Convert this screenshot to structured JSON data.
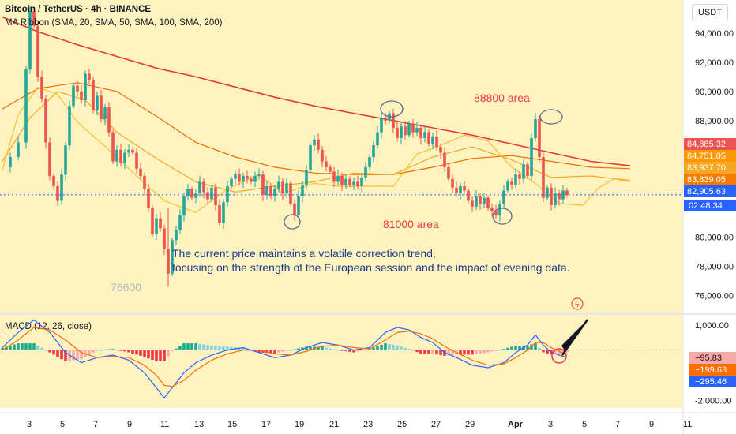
{
  "header": {
    "title": "Bitcoin / TetherUS · 4h · BINANCE",
    "ma_ribbon": "MA Ribbon (SMA, 20, SMA, 50, SMA, 100, SMA, 200)",
    "currency_button": "USDT"
  },
  "annotations": {
    "area_high": "88800 area",
    "area_low": "81000 area",
    "low_label": "76600",
    "note_line1": "The current price maintains a volatile correction trend,",
    "note_line2": "focusing on the strength of the European session and the impact of evening data."
  },
  "colors": {
    "up": "#26a69a",
    "down": "#ef5350",
    "hist_up": "#7fd3dd",
    "hist_down": "#f7a9a7",
    "macd_line": "#2962ff",
    "signal_line": "#ff6d00",
    "background_band": "#fdf3c0",
    "annotation_red": "#f23645"
  },
  "chart_data": [
    {
      "type": "candlestick",
      "title": "Bitcoin / TetherUS · 4h · BINANCE",
      "indicator": "MA Ribbon (SMA, 20, SMA, 50, SMA, 100, SMA, 200)",
      "x_tick_labels": [
        "3",
        "5",
        "7",
        "9",
        "11",
        "13",
        "15",
        "17",
        "19",
        "21",
        "23",
        "25",
        "27",
        "29",
        "Apr",
        "3",
        "5",
        "7",
        "9",
        "11"
      ],
      "y_tick_labels": [
        "94,000.00",
        "92,000.00",
        "90,000.00",
        "88,000.00",
        "80,000.00",
        "78,000.00",
        "76,000.00"
      ],
      "ylim": [
        75000,
        96000
      ],
      "price_labels": [
        {
          "value": 84885.32,
          "text": "84,885.32",
          "color": "#ef5350"
        },
        {
          "value": 84751.05,
          "text": "84,751.05",
          "color": "#ff9800"
        },
        {
          "value": 83937.7,
          "text": "83,937.70",
          "color": "#f5a623"
        },
        {
          "value": 83839.05,
          "text": "83,839.05",
          "color": "#f57c00"
        },
        {
          "value": 82905.63,
          "text": "82,905.63",
          "color": "#2962ff"
        }
      ],
      "countdown": "02:48:34",
      "current_price": 82905.63,
      "annotated_levels": [
        88800,
        81000,
        76600
      ],
      "sma200": [
        [
          1,
          95100
        ],
        [
          10,
          94100
        ],
        [
          20,
          93200
        ],
        [
          30,
          92400
        ],
        [
          40,
          91600
        ],
        [
          50,
          91000
        ],
        [
          60,
          90300
        ],
        [
          70,
          89600
        ],
        [
          80,
          89000
        ],
        [
          90,
          88500
        ],
        [
          100,
          88000
        ],
        [
          110,
          87500
        ],
        [
          120,
          87000
        ],
        [
          130,
          86400
        ],
        [
          140,
          85800
        ],
        [
          150,
          85200
        ],
        [
          160,
          84900
        ]
      ],
      "sma100": [
        [
          1,
          88800
        ],
        [
          10,
          90200
        ],
        [
          20,
          90600
        ],
        [
          30,
          90000
        ],
        [
          40,
          88300
        ],
        [
          50,
          86500
        ],
        [
          60,
          85500
        ],
        [
          70,
          84800
        ],
        [
          80,
          84400
        ],
        [
          90,
          84300
        ],
        [
          100,
          84300
        ],
        [
          110,
          84800
        ],
        [
          120,
          85400
        ],
        [
          130,
          85600
        ],
        [
          140,
          85200
        ],
        [
          150,
          84800
        ],
        [
          160,
          84700
        ]
      ],
      "sma50": [
        [
          1,
          85200
        ],
        [
          8,
          88200
        ],
        [
          15,
          90000
        ],
        [
          22,
          89400
        ],
        [
          30,
          87200
        ],
        [
          40,
          85400
        ],
        [
          50,
          83800
        ],
        [
          60,
          83100
        ],
        [
          70,
          83500
        ],
        [
          80,
          83800
        ],
        [
          90,
          84400
        ],
        [
          100,
          84300
        ],
        [
          110,
          85500
        ],
        [
          120,
          86200
        ],
        [
          130,
          85300
        ],
        [
          140,
          84100
        ],
        [
          150,
          84200
        ],
        [
          160,
          83900
        ]
      ],
      "sma20": [
        [
          1,
          84600
        ],
        [
          5,
          88400
        ],
        [
          10,
          90300
        ],
        [
          15,
          89800
        ],
        [
          20,
          87900
        ],
        [
          28,
          86000
        ],
        [
          35,
          84200
        ],
        [
          42,
          82500
        ],
        [
          50,
          81700
        ],
        [
          58,
          83300
        ],
        [
          66,
          84300
        ],
        [
          72,
          83000
        ],
        [
          80,
          83700
        ],
        [
          86,
          83500
        ],
        [
          92,
          83500
        ],
        [
          100,
          83500
        ],
        [
          106,
          85700
        ],
        [
          112,
          86300
        ],
        [
          118,
          87000
        ],
        [
          124,
          86600
        ],
        [
          130,
          84800
        ],
        [
          136,
          83700
        ],
        [
          142,
          82300
        ],
        [
          148,
          82200
        ],
        [
          152,
          83400
        ],
        [
          156,
          84000
        ],
        [
          160,
          83800
        ]
      ],
      "candle_path": [
        [
          1,
          84800
        ],
        [
          3,
          85500
        ],
        [
          5,
          86500
        ],
        [
          7,
          91500
        ],
        [
          8,
          95500
        ],
        [
          9,
          94500
        ],
        [
          10,
          91000
        ],
        [
          11,
          89500
        ],
        [
          12,
          86500
        ],
        [
          13,
          84200
        ],
        [
          14,
          83500
        ],
        [
          15,
          82500
        ],
        [
          16,
          84300
        ],
        [
          17,
          86300
        ],
        [
          18,
          89000
        ],
        [
          19,
          90400
        ],
        [
          20,
          90000
        ],
        [
          21,
          89400
        ],
        [
          22,
          91200
        ],
        [
          23,
          90800
        ],
        [
          24,
          88700
        ],
        [
          25,
          89700
        ],
        [
          26,
          88100
        ],
        [
          27,
          88900
        ],
        [
          28,
          87200
        ],
        [
          29,
          85200
        ],
        [
          30,
          86000
        ],
        [
          31,
          85100
        ],
        [
          32,
          85800
        ],
        [
          33,
          86000
        ],
        [
          34,
          85800
        ],
        [
          35,
          84700
        ],
        [
          36,
          84200
        ],
        [
          37,
          83300
        ],
        [
          38,
          82000
        ],
        [
          39,
          80200
        ],
        [
          40,
          81300
        ],
        [
          41,
          80600
        ],
        [
          42,
          79200
        ],
        [
          43,
          77500
        ],
        [
          44,
          79800
        ],
        [
          45,
          80500
        ],
        [
          46,
          81500
        ],
        [
          47,
          82800
        ],
        [
          48,
          83300
        ],
        [
          49,
          82700
        ],
        [
          50,
          83000
        ],
        [
          51,
          83800
        ],
        [
          52,
          83100
        ],
        [
          53,
          82600
        ],
        [
          54,
          83400
        ],
        [
          55,
          82200
        ],
        [
          56,
          81000
        ],
        [
          57,
          82400
        ],
        [
          58,
          83500
        ],
        [
          59,
          84000
        ],
        [
          60,
          84300
        ],
        [
          61,
          83800
        ],
        [
          62,
          84200
        ],
        [
          63,
          84000
        ],
        [
          64,
          83800
        ],
        [
          65,
          84200
        ],
        [
          66,
          84300
        ],
        [
          67,
          82900
        ],
        [
          68,
          83500
        ],
        [
          69,
          82800
        ],
        [
          70,
          83300
        ],
        [
          71,
          83800
        ],
        [
          72,
          83000
        ],
        [
          73,
          83700
        ],
        [
          74,
          82300
        ],
        [
          75,
          81500
        ],
        [
          76,
          82800
        ],
        [
          77,
          83600
        ],
        [
          78,
          84600
        ],
        [
          79,
          86300
        ],
        [
          80,
          86700
        ],
        [
          81,
          86000
        ],
        [
          82,
          85200
        ],
        [
          83,
          84800
        ],
        [
          84,
          84500
        ],
        [
          85,
          83800
        ],
        [
          86,
          84200
        ],
        [
          87,
          83600
        ],
        [
          88,
          84000
        ],
        [
          89,
          83600
        ],
        [
          90,
          83800
        ],
        [
          91,
          83500
        ],
        [
          92,
          84100
        ],
        [
          93,
          84800
        ],
        [
          94,
          85500
        ],
        [
          95,
          86300
        ],
        [
          96,
          87200
        ],
        [
          97,
          88200
        ],
        [
          98,
          88000
        ],
        [
          99,
          88500
        ],
        [
          100,
          87500
        ],
        [
          101,
          86800
        ],
        [
          102,
          87600
        ],
        [
          103,
          87000
        ],
        [
          104,
          87800
        ],
        [
          105,
          87200
        ],
        [
          106,
          87500
        ],
        [
          107,
          86800
        ],
        [
          108,
          87200
        ],
        [
          109,
          86400
        ],
        [
          110,
          86900
        ],
        [
          111,
          86200
        ],
        [
          112,
          85800
        ],
        [
          113,
          84800
        ],
        [
          114,
          84000
        ],
        [
          115,
          83400
        ],
        [
          116,
          83000
        ],
        [
          117,
          83500
        ],
        [
          118,
          83200
        ],
        [
          119,
          82500
        ],
        [
          120,
          82100
        ],
        [
          121,
          82800
        ],
        [
          122,
          82300
        ],
        [
          123,
          82700
        ],
        [
          124,
          82000
        ],
        [
          125,
          81800
        ],
        [
          126,
          81500
        ],
        [
          127,
          82300
        ],
        [
          128,
          83200
        ],
        [
          129,
          83800
        ],
        [
          130,
          83600
        ],
        [
          131,
          84300
        ],
        [
          132,
          84000
        ],
        [
          133,
          85000
        ],
        [
          134,
          84200
        ],
        [
          135,
          86800
        ],
        [
          136,
          88100
        ],
        [
          137,
          85500
        ],
        [
          138,
          82700
        ],
        [
          139,
          83400
        ],
        [
          140,
          82200
        ],
        [
          141,
          83000
        ],
        [
          142,
          82600
        ],
        [
          143,
          83200
        ],
        [
          144,
          82900
        ]
      ]
    },
    {
      "type": "macd",
      "title": "MACD (12, 26, close)",
      "y_tick_labels": [
        "1,000.00",
        "-2,000.00"
      ],
      "ylim": [
        -2300,
        1400
      ],
      "value_labels": [
        {
          "value": -95.83,
          "text": "−95.83",
          "color": "#f7a9a7"
        },
        {
          "value": -199.63,
          "text": "−199.63",
          "color": "#ff6d00"
        },
        {
          "value": -295.46,
          "text": "−295.46",
          "color": "#2962ff"
        }
      ],
      "macd_line": [
        [
          1,
          100
        ],
        [
          5,
          700
        ],
        [
          9,
          1200
        ],
        [
          13,
          700
        ],
        [
          17,
          -100
        ],
        [
          21,
          -500
        ],
        [
          25,
          -300
        ],
        [
          29,
          -200
        ],
        [
          33,
          -400
        ],
        [
          37,
          -900
        ],
        [
          40,
          -1500
        ],
        [
          42,
          -1900
        ],
        [
          44,
          -1500
        ],
        [
          47,
          -900
        ],
        [
          50,
          -500
        ],
        [
          54,
          -200
        ],
        [
          58,
          0
        ],
        [
          62,
          100
        ],
        [
          66,
          -100
        ],
        [
          70,
          -300
        ],
        [
          74,
          -200
        ],
        [
          78,
          100
        ],
        [
          82,
          300
        ],
        [
          86,
          200
        ],
        [
          90,
          0
        ],
        [
          94,
          100
        ],
        [
          98,
          700
        ],
        [
          101,
          900
        ],
        [
          104,
          800
        ],
        [
          107,
          500
        ],
        [
          110,
          300
        ],
        [
          113,
          -100
        ],
        [
          116,
          -300
        ],
        [
          120,
          -600
        ],
        [
          124,
          -700
        ],
        [
          128,
          -500
        ],
        [
          131,
          -100
        ],
        [
          134,
          200
        ],
        [
          136,
          600
        ],
        [
          138,
          200
        ],
        [
          140,
          -100
        ],
        [
          144,
          -295
        ]
      ],
      "signal_line": [
        [
          1,
          0
        ],
        [
          5,
          400
        ],
        [
          9,
          900
        ],
        [
          13,
          800
        ],
        [
          17,
          400
        ],
        [
          21,
          -100
        ],
        [
          25,
          -300
        ],
        [
          29,
          -250
        ],
        [
          33,
          -300
        ],
        [
          37,
          -600
        ],
        [
          40,
          -1000
        ],
        [
          42,
          -1400
        ],
        [
          44,
          -1450
        ],
        [
          47,
          -1200
        ],
        [
          50,
          -800
        ],
        [
          54,
          -400
        ],
        [
          58,
          -150
        ],
        [
          62,
          0
        ],
        [
          66,
          0
        ],
        [
          70,
          -150
        ],
        [
          74,
          -200
        ],
        [
          78,
          -50
        ],
        [
          82,
          150
        ],
        [
          86,
          200
        ],
        [
          90,
          100
        ],
        [
          94,
          50
        ],
        [
          98,
          400
        ],
        [
          101,
          700
        ],
        [
          104,
          750
        ],
        [
          107,
          650
        ],
        [
          110,
          450
        ],
        [
          113,
          150
        ],
        [
          116,
          -100
        ],
        [
          120,
          -400
        ],
        [
          124,
          -600
        ],
        [
          128,
          -550
        ],
        [
          131,
          -300
        ],
        [
          134,
          0
        ],
        [
          136,
          300
        ],
        [
          138,
          300
        ],
        [
          140,
          100
        ],
        [
          144,
          -200
        ]
      ]
    }
  ]
}
